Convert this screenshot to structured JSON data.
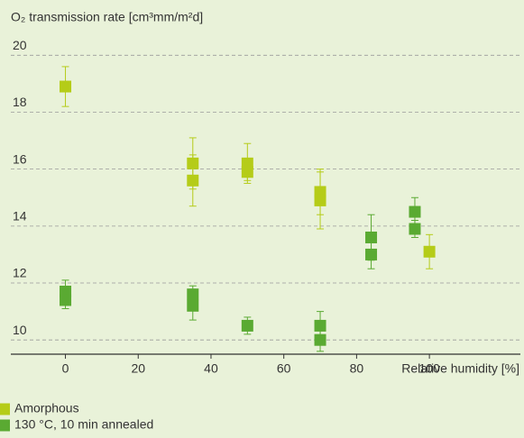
{
  "chart_data": {
    "type": "scatter",
    "y_label": "O₂ transmission rate [cm³mm/m²d]",
    "x_label": "Relative humidity [%]",
    "xlim": [
      -15,
      125
    ],
    "xticks": [
      0,
      20,
      40,
      60,
      80,
      100
    ],
    "ylim": [
      9.5,
      20.5
    ],
    "yticks": [
      10,
      12,
      14,
      16,
      18,
      20
    ],
    "grid": true,
    "legend": "bottom-left",
    "series": [
      {
        "name": "Amorphous",
        "color": "#b5cc18",
        "x": [
          0,
          35,
          35,
          50,
          50,
          70,
          70,
          100
        ],
        "values": [
          18.9,
          16.2,
          15.6,
          16.2,
          15.9,
          15.2,
          14.9,
          13.1
        ],
        "errors": [
          0.7,
          0.9,
          0.9,
          0.7,
          0.3,
          0.8,
          1.0,
          0.6
        ]
      },
      {
        "name": "130 °C, 10 min annealed",
        "color": "#5aaa32",
        "x": [
          0,
          0,
          35,
          35,
          50,
          70,
          70,
          84,
          84,
          96,
          96
        ],
        "values": [
          11.7,
          11.4,
          11.6,
          11.2,
          10.5,
          10.5,
          10.0,
          13.6,
          13.0,
          14.5,
          13.9
        ],
        "errors": [
          0.4,
          0.3,
          0.3,
          0.5,
          0.3,
          0.5,
          0.4,
          0.8,
          0.5,
          0.5,
          0.3
        ]
      }
    ]
  }
}
